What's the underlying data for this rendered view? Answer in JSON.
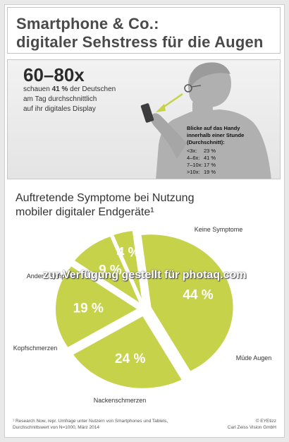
{
  "title": {
    "line1": "Smartphone & Co.:",
    "line2": "digitaler Sehstress für die Augen"
  },
  "stat": {
    "big": "60–80x",
    "desc_prefix": "schauen ",
    "desc_bold": "41 %",
    "desc_suffix": " der Deutschen",
    "desc_line2": "am Tag durchschnittlich",
    "desc_line3": "auf ihr digitales Display"
  },
  "blicke": {
    "heading1": "Blicke auf das Handy",
    "heading2": "innerhalb einer Stunde",
    "heading3": "(Durchschnitt):",
    "rows": [
      {
        "label": "<3x:",
        "value": "23 %"
      },
      {
        "label": "4–6x:",
        "value": "41 %"
      },
      {
        "label": "7–10x:",
        "value": "17 %"
      },
      {
        "label": ">10x:",
        "value": "19 %"
      }
    ]
  },
  "symptoms": {
    "line1": "Auftretende Symptome bei Nutzung",
    "line2": "mobiler digitaler Endgeräte¹"
  },
  "chart_data": {
    "type": "pie",
    "title": "Auftretende Symptome bei Nutzung mobiler digitaler Endgeräte¹",
    "slices": [
      {
        "label": "Keine Symptome",
        "value": 44,
        "value_label": "44 %"
      },
      {
        "label": "Müde Augen",
        "value": 24,
        "value_label": "24 %"
      },
      {
        "label": "Nackenschmerzen",
        "value": 19,
        "value_label": "19 %"
      },
      {
        "label": "Kopfschmerzen",
        "value": 9,
        "value_label": "9 %"
      },
      {
        "label": "Andere Symptome",
        "value": 4,
        "value_label": "4 %"
      }
    ],
    "color": "#c5d24a",
    "exploded": true
  },
  "watermark": "zur Verfügung gestellt für photaq.com",
  "footnote": {
    "line1": "¹  Research Now, repr. Umfrage unter Nutzern von Smartphones und Tablets,",
    "line2": "Durchschnittswert von N=1000, März 2014"
  },
  "credit": {
    "line1": "© EYEtizz",
    "line2": "Carl Zeiss Vision GmbH"
  }
}
